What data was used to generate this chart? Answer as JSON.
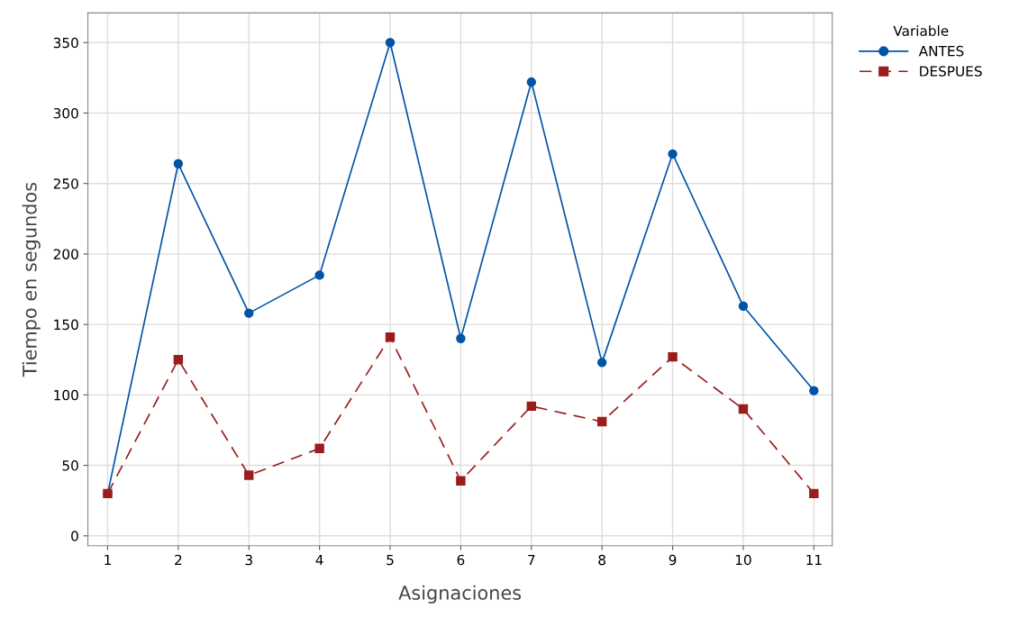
{
  "chart_data": {
    "type": "line",
    "xlabel": "Asignaciones",
    "ylabel": "Tiempo en segundos",
    "legend_title": "Variable",
    "x": [
      1,
      2,
      3,
      4,
      5,
      6,
      7,
      8,
      9,
      10,
      11
    ],
    "series": [
      {
        "name": "ANTES",
        "color": "#0054a6",
        "marker": "circle",
        "line_style": "solid",
        "values": [
          30,
          264,
          158,
          185,
          350,
          140,
          322,
          123,
          271,
          163,
          103
        ]
      },
      {
        "name": "DESPUES",
        "color": "#9b1c1c",
        "marker": "square",
        "line_style": "dashed",
        "values": [
          30,
          125,
          43,
          62,
          141,
          39,
          92,
          81,
          127,
          90,
          30
        ]
      }
    ],
    "xlim": [
      0.72,
      11.26
    ],
    "ylim": [
      -7,
      371
    ],
    "xticks": [
      1,
      2,
      3,
      4,
      5,
      6,
      7,
      8,
      9,
      10,
      11
    ],
    "yticks": [
      0,
      50,
      100,
      150,
      200,
      250,
      300,
      350
    ],
    "grid": true,
    "legend": "top right"
  }
}
